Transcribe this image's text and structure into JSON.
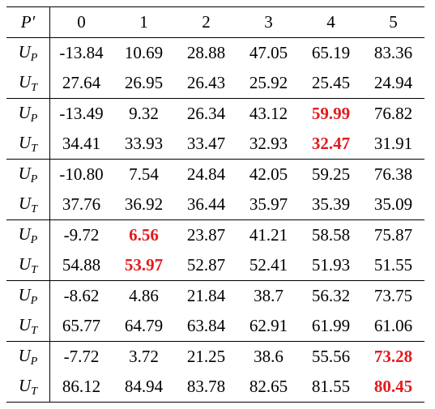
{
  "table": {
    "header": {
      "corner": "P′",
      "columns": [
        "0",
        "1",
        "2",
        "3",
        "4",
        "5"
      ]
    },
    "groups": [
      {
        "rows": [
          {
            "label": {
              "main": "U",
              "sub": "P"
            },
            "cells": [
              "-13.84",
              "10.69",
              "28.88",
              "47.05",
              "65.19",
              "83.36"
            ],
            "highlight": []
          },
          {
            "label": {
              "main": "U",
              "sub": "T"
            },
            "cells": [
              "27.64",
              "26.95",
              "26.43",
              "25.92",
              "25.45",
              "24.94"
            ],
            "highlight": []
          }
        ]
      },
      {
        "rows": [
          {
            "label": {
              "main": "U",
              "sub": "P"
            },
            "cells": [
              "-13.49",
              "9.32",
              "26.34",
              "43.12",
              "59.99",
              "76.82"
            ],
            "highlight": [
              4
            ]
          },
          {
            "label": {
              "main": "U",
              "sub": "T"
            },
            "cells": [
              "34.41",
              "33.93",
              "33.47",
              "32.93",
              "32.47",
              "31.91"
            ],
            "highlight": [
              4
            ]
          }
        ]
      },
      {
        "rows": [
          {
            "label": {
              "main": "U",
              "sub": "P"
            },
            "cells": [
              "-10.80",
              "7.54",
              "24.84",
              "42.05",
              "59.25",
              "76.38"
            ],
            "highlight": []
          },
          {
            "label": {
              "main": "U",
              "sub": "T"
            },
            "cells": [
              "37.76",
              "36.92",
              "36.44",
              "35.97",
              "35.39",
              "35.09"
            ],
            "highlight": []
          }
        ]
      },
      {
        "rows": [
          {
            "label": {
              "main": "U",
              "sub": "P"
            },
            "cells": [
              "-9.72",
              "6.56",
              "23.87",
              "41.21",
              "58.58",
              "75.87"
            ],
            "highlight": [
              1
            ]
          },
          {
            "label": {
              "main": "U",
              "sub": "T"
            },
            "cells": [
              "54.88",
              "53.97",
              "52.87",
              "52.41",
              "51.93",
              "51.55"
            ],
            "highlight": [
              1
            ]
          }
        ]
      },
      {
        "rows": [
          {
            "label": {
              "main": "U",
              "sub": "P"
            },
            "cells": [
              "-8.62",
              "4.86",
              "21.84",
              "38.7",
              "56.32",
              "73.75"
            ],
            "highlight": []
          },
          {
            "label": {
              "main": "U",
              "sub": "T"
            },
            "cells": [
              "65.77",
              "64.79",
              "63.84",
              "62.91",
              "61.99",
              "61.06"
            ],
            "highlight": []
          }
        ]
      },
      {
        "rows": [
          {
            "label": {
              "main": "U",
              "sub": "P"
            },
            "cells": [
              "-7.72",
              "3.72",
              "21.25",
              "38.6",
              "55.56",
              "73.28"
            ],
            "highlight": [
              5
            ]
          },
          {
            "label": {
              "main": "U",
              "sub": "T"
            },
            "cells": [
              "86.12",
              "84.94",
              "83.78",
              "82.65",
              "81.55",
              "80.45"
            ],
            "highlight": [
              5
            ]
          }
        ]
      }
    ]
  }
}
